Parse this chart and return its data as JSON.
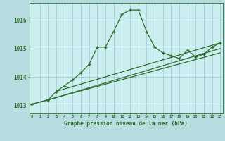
{
  "background_color": "#b8dde0",
  "plot_bg_color": "#cceef0",
  "grid_color": "#99cccc",
  "line_color": "#2d6e2d",
  "xlabel": "Graphe pression niveau de la mer (hPa)",
  "hours": [
    0,
    1,
    2,
    3,
    4,
    5,
    6,
    7,
    8,
    9,
    10,
    11,
    12,
    13,
    14,
    15,
    16,
    17,
    18,
    19,
    20,
    21,
    22,
    23
  ],
  "main_line": [
    1013.05,
    null,
    1013.2,
    1013.5,
    1013.7,
    1013.9,
    1014.15,
    1014.45,
    1015.05,
    1015.05,
    1015.6,
    1016.2,
    1016.35,
    1016.35,
    1015.6,
    1015.05,
    1014.85,
    1014.75,
    1014.65,
    1014.95,
    1014.7,
    1014.8,
    1015.05,
    1015.2
  ],
  "trend1_x": [
    0,
    23
  ],
  "trend1_y": [
    1013.05,
    1014.85
  ],
  "trend2_x": [
    2,
    23
  ],
  "trend2_y": [
    1013.2,
    1015.0
  ],
  "trend3_x": [
    3,
    23
  ],
  "trend3_y": [
    1013.5,
    1015.2
  ],
  "ylim": [
    1012.75,
    1016.6
  ],
  "yticks": [
    1013,
    1014,
    1015,
    1016
  ],
  "xlim": [
    -0.3,
    23.3
  ]
}
